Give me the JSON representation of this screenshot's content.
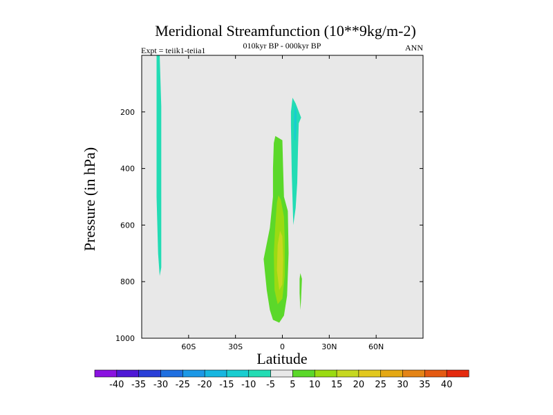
{
  "chart_data": {
    "type": "heatmap",
    "title": "Meridional Streamfunction (10**9kg/m-2)",
    "left_label": "Expt = teiik1-teiia1",
    "center_label": "010kyr BP - 000kyr BP",
    "right_label": "ANN",
    "xlabel": "Latitude",
    "ylabel": "Pressure (in hPa)",
    "xlim": [
      -90,
      90
    ],
    "ylim": [
      1000,
      0
    ],
    "x_ticks": [
      {
        "value": -60,
        "label": "60S"
      },
      {
        "value": -30,
        "label": "30S"
      },
      {
        "value": 0,
        "label": "0"
      },
      {
        "value": 30,
        "label": "30N"
      },
      {
        "value": 60,
        "label": "60N"
      }
    ],
    "y_ticks": [
      {
        "value": 200,
        "label": "200"
      },
      {
        "value": 400,
        "label": "400"
      },
      {
        "value": 600,
        "label": "600"
      },
      {
        "value": 800,
        "label": "800"
      },
      {
        "value": 1000,
        "label": "1000"
      }
    ],
    "background_color": "#e8e8e8",
    "colorbar": {
      "levels": [
        "-40",
        "-35",
        "-30",
        "-25",
        "-20",
        "-15",
        "-10",
        "-5",
        "5",
        "10",
        "15",
        "20",
        "25",
        "30",
        "35",
        "40"
      ],
      "colors": [
        "#8a12e0",
        "#4f18d6",
        "#2a3fd8",
        "#1f6fe0",
        "#1c98e6",
        "#16b6e0",
        "#18cdd0",
        "#23dcb4",
        "#e8e8e8",
        "#5bd82a",
        "#9adb12",
        "#c6d820",
        "#e2c81e",
        "#e4a814",
        "#e48416",
        "#e45a12",
        "#e42a0e"
      ]
    },
    "contours": [
      {
        "level_band": "-10 to -5",
        "color": "#23dcb4",
        "region": [
          [
            -80.5,
            0
          ],
          [
            -78.5,
            0
          ],
          [
            -77.5,
            180
          ],
          [
            -77.5,
            500
          ],
          [
            -77.5,
            750
          ],
          [
            -78.5,
            780
          ],
          [
            -79.5,
            700
          ],
          [
            -80.5,
            500
          ],
          [
            -80.5,
            200
          ]
        ]
      },
      {
        "level_band": "-10 to -5",
        "color": "#23dcb4",
        "region": [
          [
            6.5,
            150
          ],
          [
            8.5,
            170
          ],
          [
            12.0,
            220
          ],
          [
            10.5,
            240
          ],
          [
            10.0,
            330
          ],
          [
            9.5,
            450
          ],
          [
            8.5,
            540
          ],
          [
            7.0,
            600
          ],
          [
            6.0,
            420
          ],
          [
            5.5,
            250
          ],
          [
            5.5,
            200
          ]
        ]
      },
      {
        "level_band": "-15 to -10",
        "color": "#18cdd0",
        "region": [
          [
            8.0,
            175
          ],
          [
            9.0,
            200
          ],
          [
            9.0,
            250
          ],
          [
            8.5,
            300
          ],
          [
            7.5,
            300
          ],
          [
            7.5,
            220
          ]
        ]
      },
      {
        "level_band": "5 to 10",
        "color": "#5bd82a",
        "region": [
          [
            -4.5,
            285
          ],
          [
            0.0,
            300
          ],
          [
            0.5,
            400
          ],
          [
            1.0,
            500
          ],
          [
            3.5,
            550
          ],
          [
            4.0,
            700
          ],
          [
            3.0,
            850
          ],
          [
            1.0,
            920
          ],
          [
            -2.0,
            945
          ],
          [
            -6.0,
            935
          ],
          [
            -8.0,
            900
          ],
          [
            -10.0,
            830
          ],
          [
            -12.0,
            720
          ],
          [
            -8.0,
            610
          ],
          [
            -6.0,
            500
          ],
          [
            -6.0,
            400
          ],
          [
            -5.5,
            310
          ]
        ]
      },
      {
        "level_band": "5 to 10",
        "color": "#5bd82a",
        "region": [
          [
            11.5,
            770
          ],
          [
            12.5,
            790
          ],
          [
            12.0,
            860
          ],
          [
            11.5,
            900
          ],
          [
            11.0,
            840
          ],
          [
            11.0,
            790
          ]
        ]
      },
      {
        "level_band": "10 to 15",
        "color": "#9adb12",
        "region": [
          [
            -2.5,
            495
          ],
          [
            -1.0,
            510
          ],
          [
            1.0,
            570
          ],
          [
            1.5,
            650
          ],
          [
            1.5,
            780
          ],
          [
            0.0,
            860
          ],
          [
            -3.0,
            880
          ],
          [
            -5.0,
            830
          ],
          [
            -5.5,
            700
          ],
          [
            -4.5,
            600
          ],
          [
            -3.5,
            520
          ]
        ]
      },
      {
        "level_band": "15 to 20",
        "color": "#c6d820",
        "region": [
          [
            -1.5,
            620
          ],
          [
            0.0,
            640
          ],
          [
            0.5,
            720
          ],
          [
            0.0,
            810
          ],
          [
            -2.0,
            830
          ],
          [
            -3.5,
            760
          ],
          [
            -3.0,
            670
          ]
        ]
      }
    ]
  }
}
